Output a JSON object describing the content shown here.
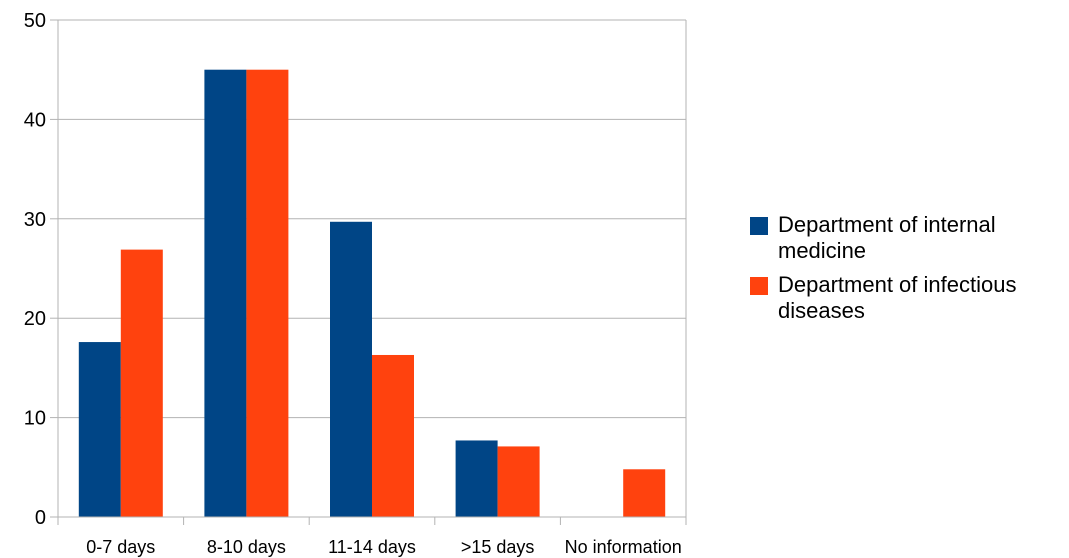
{
  "chart_data": {
    "type": "bar",
    "categories": [
      "0-7 days",
      "8-10 days",
      "11-14 days",
      ">15 days",
      "No information"
    ],
    "series": [
      {
        "name": "Department of internal medicine",
        "color": "#004586",
        "values": [
          17.6,
          45,
          29.7,
          7.7,
          0
        ]
      },
      {
        "name": "Department of infectious diseases",
        "color": "#ff420e",
        "values": [
          26.9,
          45,
          16.3,
          7.1,
          4.8
        ]
      }
    ],
    "ylim": [
      0,
      50
    ],
    "yticks": [
      0,
      10,
      20,
      30,
      40,
      50
    ],
    "grid": true,
    "legend_position": "right"
  }
}
